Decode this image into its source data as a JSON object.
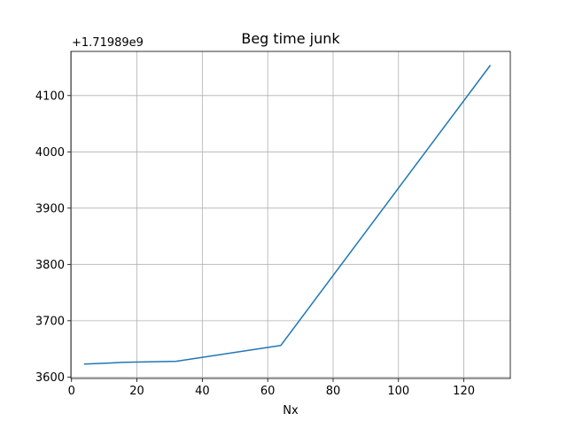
{
  "chart_data": {
    "type": "line",
    "title": "Beg time junk",
    "xlabel": "Nx",
    "ylabel": "",
    "offset_label": "+1.71989e9",
    "xlim": [
      -0.2,
      134.2
    ],
    "ylim": [
      3597.4,
      4178.4
    ],
    "grid": true,
    "xticks": [
      0,
      20,
      40,
      60,
      80,
      100,
      120
    ],
    "yticks": [
      3600,
      3700,
      3800,
      3900,
      4000,
      4100
    ],
    "series": [
      {
        "x": [
          4,
          8,
          16,
          32,
          64,
          128
        ],
        "y": [
          3623,
          3624,
          3626,
          3628,
          3656,
          4153
        ],
        "color": "#1f77b4"
      }
    ]
  }
}
